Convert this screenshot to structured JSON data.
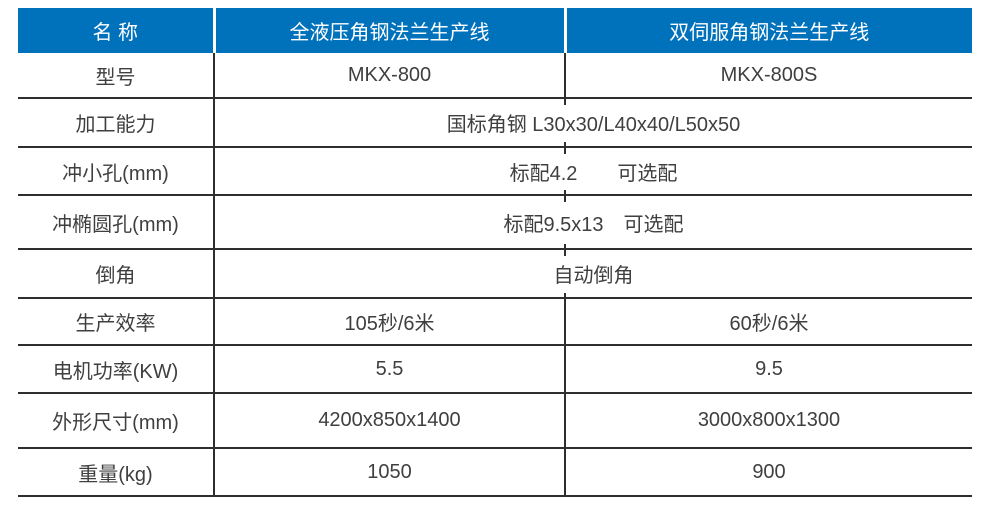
{
  "table": {
    "header": {
      "name_col": "名 称",
      "line1": "全液压角钢法兰生产线",
      "line2": "双伺服角钢法兰生产线"
    },
    "rows": [
      {
        "label": "型号",
        "v1": "MKX-800",
        "v2": "MKX-800S"
      },
      {
        "label": "加工能力",
        "value": "国标角钢 L30x30/L40x40/L50x50"
      },
      {
        "label": "冲小孔(mm)",
        "value": "标配4.2　　可选配"
      },
      {
        "label": "冲椭圆孔(mm)",
        "value": "标配9.5x13　可选配"
      },
      {
        "label": "倒角",
        "value": "自动倒角"
      },
      {
        "label": "生产效率",
        "v1": "105秒/6米",
        "v2": "60秒/6米"
      },
      {
        "label": "电机功率(KW)",
        "v1": "5.5",
        "v2": "9.5"
      },
      {
        "label": "外形尺寸(mm)",
        "v1": "4200x850x1400",
        "v2": "3000x800x1300"
      },
      {
        "label": "重量(kg)",
        "v1": "1050",
        "v2": "900"
      }
    ],
    "colors": {
      "header_bg": "#0072BC",
      "header_text": "#ffffff",
      "border": "#2e2e2e",
      "body_text": "#3f3f3f"
    }
  }
}
